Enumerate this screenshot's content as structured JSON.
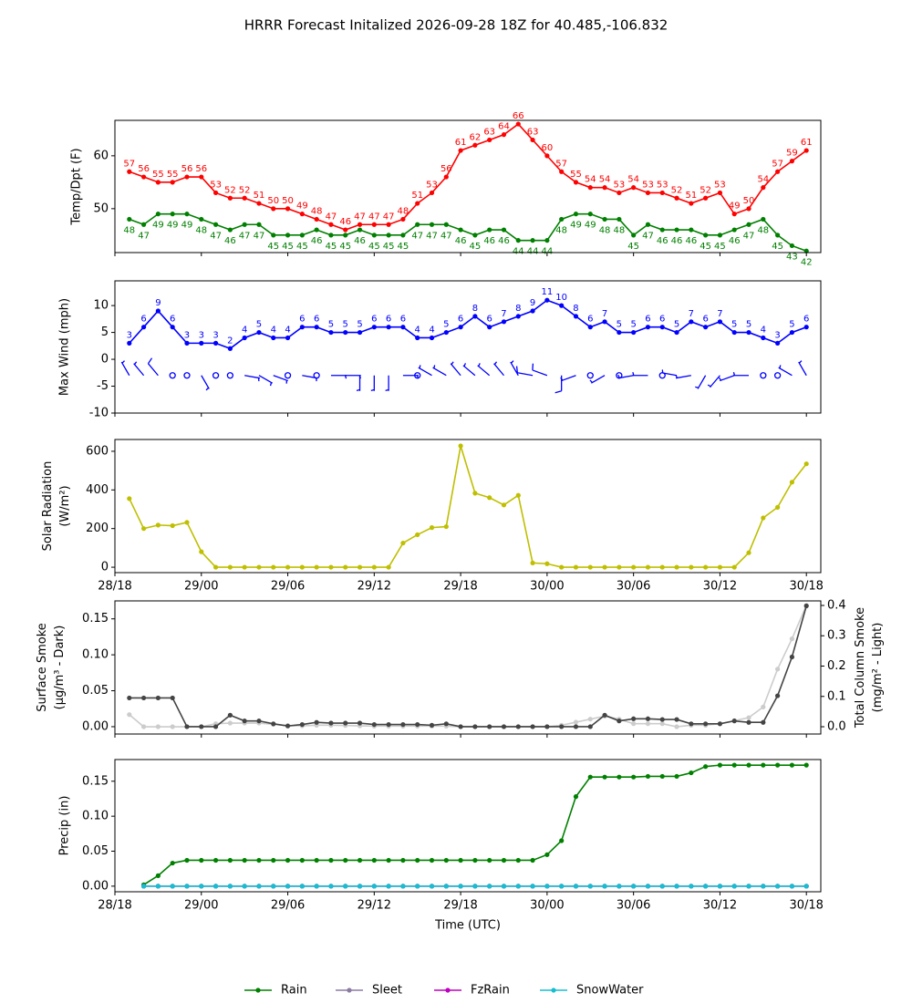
{
  "title": "HRRR Forecast Initalized 2026-09-28 18Z for 40.485,-106.832",
  "chart_data": [
    {
      "type": "line",
      "ylabel": [
        "Temp/Dpt (F)"
      ],
      "x": [
        1,
        2,
        3,
        4,
        5,
        6,
        7,
        8,
        9,
        10,
        11,
        12,
        13,
        14,
        15,
        16,
        17,
        18,
        19,
        20,
        21,
        22,
        23,
        24,
        25,
        26,
        27,
        28,
        29,
        30,
        31,
        32,
        33,
        34,
        35,
        36,
        37,
        38,
        39,
        40,
        41,
        42,
        43,
        44,
        45,
        46,
        47,
        48
      ],
      "xlim": [
        0,
        49
      ],
      "xticks": [
        0,
        6,
        12,
        18,
        24,
        30,
        36,
        42,
        48
      ],
      "ylim": [
        41.7,
        66.7
      ],
      "yticks": [
        50,
        60
      ],
      "series": [
        {
          "color": "#ff0000",
          "point_labels": "above",
          "values": [
            57,
            56,
            55,
            55,
            56,
            56,
            53,
            52,
            52,
            51,
            50,
            50,
            49,
            48,
            47,
            46,
            47,
            47,
            47,
            48,
            51,
            53,
            56,
            61,
            62,
            63,
            64,
            66,
            63,
            60,
            57,
            55,
            54,
            54,
            53,
            54,
            53,
            53,
            52,
            51,
            52,
            53,
            49,
            50,
            54,
            57,
            59,
            61
          ]
        },
        {
          "color": "#008000",
          "point_labels": "below",
          "values": [
            48,
            47,
            49,
            49,
            49,
            48,
            47,
            46,
            47,
            47,
            45,
            45,
            45,
            46,
            45,
            45,
            46,
            45,
            45,
            45,
            47,
            47,
            47,
            46,
            45,
            46,
            46,
            44,
            44,
            44,
            48,
            49,
            49,
            48,
            48,
            45,
            47,
            46,
            46,
            46,
            45,
            45,
            46,
            47,
            48,
            45,
            43,
            42
          ]
        }
      ]
    },
    {
      "type": "line",
      "ylabel": [
        "Max Wind (mph)"
      ],
      "x": [
        1,
        2,
        3,
        4,
        5,
        6,
        7,
        8,
        9,
        10,
        11,
        12,
        13,
        14,
        15,
        16,
        17,
        18,
        19,
        20,
        21,
        22,
        23,
        24,
        25,
        26,
        27,
        28,
        29,
        30,
        31,
        32,
        33,
        34,
        35,
        36,
        37,
        38,
        39,
        40,
        41,
        42,
        43,
        44,
        45,
        46,
        47,
        48
      ],
      "xlim": [
        0,
        49
      ],
      "xticks": [
        0,
        6,
        12,
        18,
        24,
        30,
        36,
        42,
        48
      ],
      "ylim": [
        -10,
        14.6
      ],
      "yticks": [
        -10,
        -5,
        0,
        5,
        10
      ],
      "series": [
        {
          "color": "#0000ff",
          "point_labels": "above",
          "values": [
            3,
            6,
            9,
            6,
            3,
            3,
            3,
            2,
            4,
            5,
            4,
            4,
            6,
            6,
            5,
            5,
            5,
            6,
            6,
            6,
            4,
            4,
            5,
            6,
            8,
            6,
            7,
            8,
            9,
            11,
            10,
            8,
            6,
            7,
            5,
            5,
            6,
            6,
            5,
            7,
            6,
            7,
            5,
            5,
            4,
            3,
            5,
            6
          ]
        }
      ],
      "barb_level": -3,
      "wind_direction": [
        330,
        320,
        320,
        null,
        null,
        150,
        null,
        null,
        100,
        120,
        110,
        null,
        100,
        null,
        90,
        90,
        180,
        180,
        180,
        90,
        null,
        300,
        300,
        320,
        310,
        310,
        320,
        330,
        280,
        290,
        180,
        250,
        null,
        240,
        null,
        260,
        270,
        null,
        280,
        260,
        210,
        220,
        250,
        270,
        null,
        null,
        300,
        330
      ]
    },
    {
      "type": "line",
      "ylabel": [
        "Solar Radiation",
        "(W/m²)"
      ],
      "x": [
        1,
        2,
        3,
        4,
        5,
        6,
        7,
        8,
        9,
        10,
        11,
        12,
        13,
        14,
        15,
        16,
        17,
        18,
        19,
        20,
        21,
        22,
        23,
        24,
        25,
        26,
        27,
        28,
        29,
        30,
        31,
        32,
        33,
        34,
        35,
        36,
        37,
        38,
        39,
        40,
        41,
        42,
        43,
        44,
        45,
        46,
        47,
        48
      ],
      "xlim": [
        0,
        49
      ],
      "xticks": [
        {
          "value": 0,
          "label": "28/18"
        },
        {
          "value": 6,
          "label": "29/00"
        },
        {
          "value": 12,
          "label": "29/06"
        },
        {
          "value": 18,
          "label": "29/12"
        },
        {
          "value": 24,
          "label": "29/18"
        },
        {
          "value": 30,
          "label": "30/00"
        },
        {
          "value": 36,
          "label": "30/06"
        },
        {
          "value": 42,
          "label": "30/12"
        },
        {
          "value": 48,
          "label": "30/18"
        }
      ],
      "ylim": [
        -28,
        661
      ],
      "yticks": [
        0,
        200,
        400,
        600
      ],
      "series": [
        {
          "color": "#bfbf00",
          "values": [
            355,
            200,
            218,
            215,
            232,
            80,
            0,
            0,
            0,
            0,
            0,
            0,
            0,
            0,
            0,
            0,
            0,
            0,
            0,
            125,
            168,
            205,
            210,
            628,
            383,
            360,
            322,
            372,
            22,
            18,
            0,
            0,
            0,
            0,
            0,
            0,
            0,
            0,
            0,
            0,
            0,
            0,
            0,
            75,
            255,
            310,
            440,
            535
          ]
        }
      ]
    },
    {
      "type": "line",
      "ylabel": [
        "Surface Smoke",
        "(μg/m³ - Dark)"
      ],
      "y2label": [
        "Total Column Smoke",
        "(mg/m² - Light)"
      ],
      "x": [
        1,
        2,
        3,
        4,
        5,
        6,
        7,
        8,
        9,
        10,
        11,
        12,
        13,
        14,
        15,
        16,
        17,
        18,
        19,
        20,
        21,
        22,
        23,
        24,
        25,
        26,
        27,
        28,
        29,
        30,
        31,
        32,
        33,
        34,
        35,
        36,
        37,
        38,
        39,
        40,
        41,
        42,
        43,
        44,
        45,
        46,
        47,
        48
      ],
      "xlim": [
        0,
        49
      ],
      "xticks": [
        0,
        6,
        12,
        18,
        24,
        30,
        36,
        42,
        48
      ],
      "ylim": [
        -0.0102,
        0.175
      ],
      "yticks": [
        {
          "value": 0,
          "label": "0.00"
        },
        {
          "value": 0.05,
          "label": "0.05"
        },
        {
          "value": 0.1,
          "label": "0.10"
        },
        {
          "value": 0.15,
          "label": "0.15"
        }
      ],
      "y2lim": [
        -0.024,
        0.415
      ],
      "y2ticks": [
        {
          "value": 0,
          "label": "0.0"
        },
        {
          "value": 0.1,
          "label": "0.1"
        },
        {
          "value": 0.2,
          "label": "0.2"
        },
        {
          "value": 0.3,
          "label": "0.3"
        },
        {
          "value": 0.4,
          "label": "0.4"
        }
      ],
      "series": [
        {
          "color": "#cccccc",
          "axis": "y2",
          "values": [
            0.04,
            0,
            0,
            0,
            0,
            0,
            0.01,
            0.012,
            0.012,
            0.012,
            0.008,
            0.004,
            0.003,
            0.005,
            0.005,
            0.004,
            0.003,
            0.002,
            0.002,
            0.002,
            0.002,
            0.002,
            0.002,
            0,
            0,
            0,
            0,
            0,
            0,
            0,
            0.005,
            0.015,
            0.025,
            0.035,
            0.025,
            0.01,
            0.01,
            0.01,
            0,
            0.005,
            0.005,
            0.01,
            0.02,
            0.03,
            0.065,
            0.19,
            0.29,
            0.4
          ]
        },
        {
          "color": "#444444",
          "values": [
            0.04,
            0.04,
            0.04,
            0.04,
            0,
            0,
            0,
            0.016,
            0.008,
            0.008,
            0.004,
            0.001,
            0.003,
            0.006,
            0.005,
            0.005,
            0.005,
            0.003,
            0.003,
            0.003,
            0.003,
            0.002,
            0.004,
            0,
            0,
            0,
            0,
            0,
            0,
            0,
            0,
            0,
            0,
            0.016,
            0.008,
            0.011,
            0.011,
            0.01,
            0.01,
            0.004,
            0.004,
            0.004,
            0.008,
            0.006,
            0.006,
            0.043,
            0.097,
            0.168
          ]
        }
      ]
    },
    {
      "type": "line",
      "ylabel": [
        "Precip (in)"
      ],
      "xlabel": "Time (UTC)",
      "legend": "bottom",
      "x": [
        1,
        2,
        3,
        4,
        5,
        6,
        7,
        8,
        9,
        10,
        11,
        12,
        13,
        14,
        15,
        16,
        17,
        18,
        19,
        20,
        21,
        22,
        23,
        24,
        25,
        26,
        27,
        28,
        29,
        30,
        31,
        32,
        33,
        34,
        35,
        36,
        37,
        38,
        39,
        40,
        41,
        42,
        43,
        44,
        45,
        46,
        47,
        48
      ],
      "xlim": [
        0,
        49
      ],
      "xticks": [
        {
          "value": 0,
          "label": "28/18"
        },
        {
          "value": 6,
          "label": "29/00"
        },
        {
          "value": 12,
          "label": "29/06"
        },
        {
          "value": 18,
          "label": "29/12"
        },
        {
          "value": 24,
          "label": "29/18"
        },
        {
          "value": 30,
          "label": "30/00"
        },
        {
          "value": 36,
          "label": "30/06"
        },
        {
          "value": 42,
          "label": "30/12"
        },
        {
          "value": 48,
          "label": "30/18"
        }
      ],
      "ylim": [
        -0.008,
        0.181
      ],
      "yticks": [
        {
          "value": 0,
          "label": "0.00"
        },
        {
          "value": 0.05,
          "label": "0.05"
        },
        {
          "value": 0.1,
          "label": "0.10"
        },
        {
          "value": 0.15,
          "label": "0.15"
        }
      ],
      "series": [
        {
          "name": "Rain",
          "color": "#008000",
          "values": [
            null,
            0.002,
            0.015,
            0.033,
            0.037,
            0.037,
            0.037,
            0.037,
            0.037,
            0.037,
            0.037,
            0.037,
            0.037,
            0.037,
            0.037,
            0.037,
            0.037,
            0.037,
            0.037,
            0.037,
            0.037,
            0.037,
            0.037,
            0.037,
            0.037,
            0.037,
            0.037,
            0.037,
            0.037,
            0.045,
            0.065,
            0.128,
            0.156,
            0.156,
            0.156,
            0.156,
            0.157,
            0.157,
            0.157,
            0.162,
            0.171,
            0.173,
            0.173,
            0.173,
            0.173,
            0.173,
            0.173,
            0.173
          ]
        },
        {
          "name": "Sleet",
          "color": "#8c7ca4",
          "values": [
            null,
            0,
            0,
            0,
            0,
            0,
            0,
            0,
            0,
            0,
            0,
            0,
            0,
            0,
            0,
            0,
            0,
            0,
            0,
            0,
            0,
            0,
            0,
            0,
            0,
            0,
            0,
            0,
            0,
            0,
            0,
            0,
            0,
            0,
            0,
            0,
            0,
            0,
            0,
            0,
            0,
            0,
            0,
            0,
            0,
            0,
            0,
            0
          ]
        },
        {
          "name": "FzRain",
          "color": "#bf00bf",
          "values": [
            null,
            0,
            0,
            0,
            0,
            0,
            0,
            0,
            0,
            0,
            0,
            0,
            0,
            0,
            0,
            0,
            0,
            0,
            0,
            0,
            0,
            0,
            0,
            0,
            0,
            0,
            0,
            0,
            0,
            0,
            0,
            0,
            0,
            0,
            0,
            0,
            0,
            0,
            0,
            0,
            0,
            0,
            0,
            0,
            0,
            0,
            0,
            0
          ]
        },
        {
          "name": "SnowWater",
          "color": "#17becf",
          "values": [
            null,
            0,
            0,
            0,
            0,
            0,
            0,
            0,
            0,
            0,
            0,
            0,
            0,
            0,
            0,
            0,
            0,
            0,
            0,
            0,
            0,
            0,
            0,
            0,
            0,
            0,
            0,
            0,
            0,
            0,
            0,
            0,
            0,
            0,
            0,
            0,
            0,
            0,
            0,
            0,
            0,
            0,
            0,
            0,
            0,
            0,
            0,
            0
          ]
        }
      ]
    }
  ]
}
